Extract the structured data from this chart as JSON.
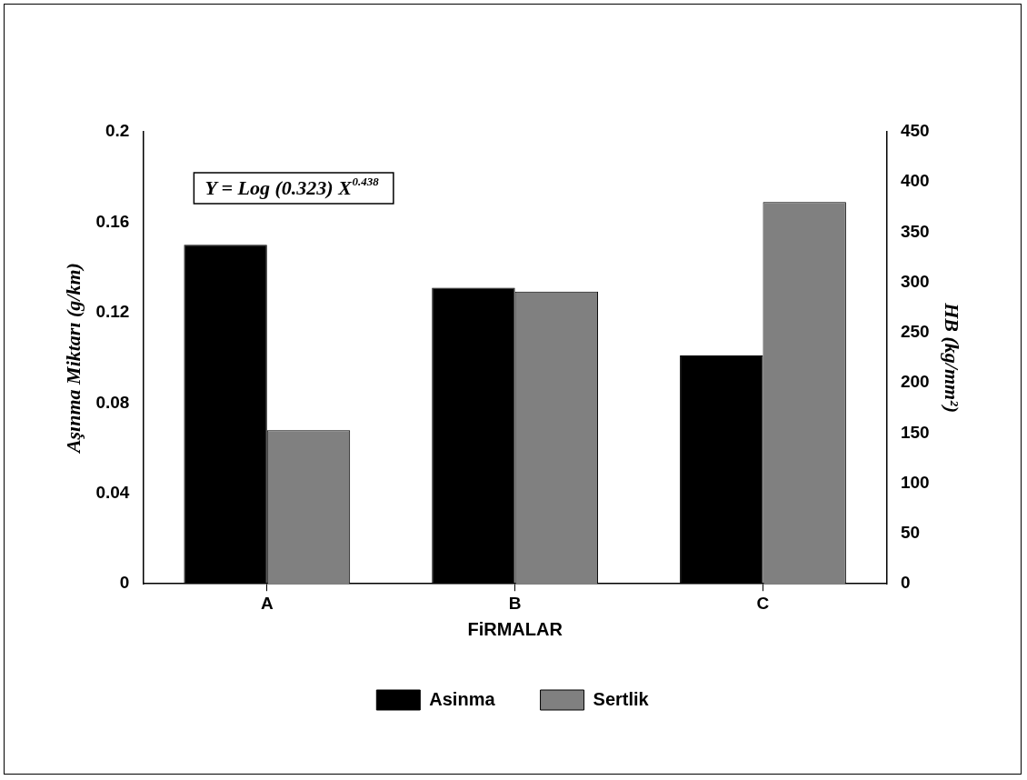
{
  "chart_data": {
    "type": "bar",
    "categories": [
      "A",
      "B",
      "C"
    ],
    "xlabel": "FiRMALAR",
    "ylabel": "Aşınma Miktarı (g/km)",
    "y2label": "HB (kg/mm²)",
    "series": [
      {
        "name": "Asinma",
        "color": "#000000",
        "values": [
          0.15,
          0.131,
          0.101
        ]
      },
      {
        "name": "Sertlik",
        "color": "#808080",
        "axis": "y2",
        "values": [
          153,
          291,
          380
        ]
      }
    ],
    "ylim": [
      0,
      0.2
    ],
    "yticks": [
      0,
      0.04,
      0.08,
      0.12,
      0.16,
      0.2
    ],
    "y2lim": [
      0,
      450
    ],
    "y2ticks": [
      0,
      50,
      100,
      150,
      200,
      250,
      300,
      350,
      400,
      450
    ],
    "annotations": [
      "Y = Log (0.323) X$^{0.438}$"
    ],
    "grid": false,
    "legend": "bottom"
  }
}
